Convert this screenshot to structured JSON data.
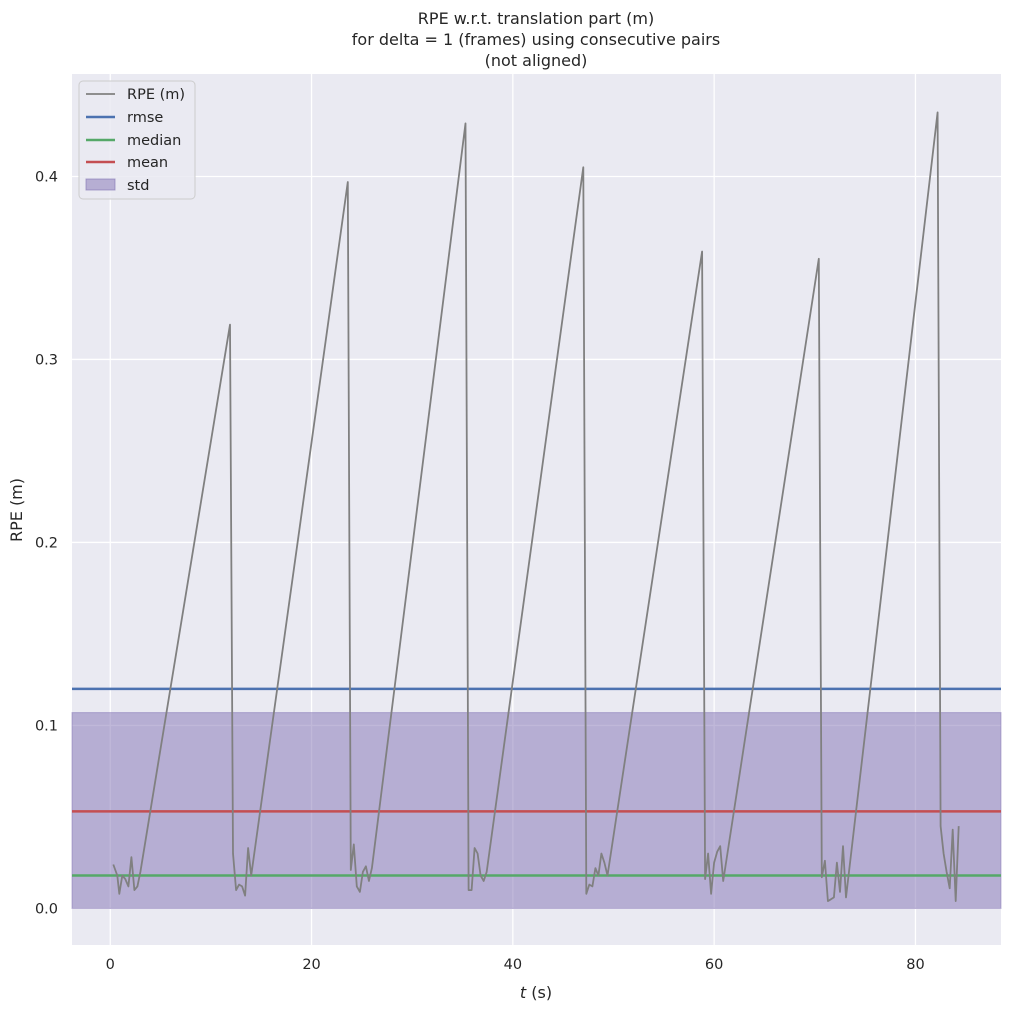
{
  "chart_data": {
    "type": "line",
    "title_lines": [
      "RPE w.r.t. translation part (m)",
      "for delta = 1 (frames) using consecutive pairs",
      "(not aligned)"
    ],
    "xlabel_var": "t",
    "xlabel_unit": " (s)",
    "ylabel": "RPE (m)",
    "xlim": [
      -3.8,
      88.5
    ],
    "ylim": [
      -0.02,
      0.456
    ],
    "x_ticks": [
      0,
      20,
      40,
      60,
      80
    ],
    "y_ticks": [
      0.0,
      0.1,
      0.2,
      0.3,
      0.4
    ],
    "x_tick_labels": [
      "0",
      "20",
      "40",
      "60",
      "80"
    ],
    "y_tick_labels": [
      "0.0",
      "0.1",
      "0.2",
      "0.3",
      "0.4"
    ],
    "grid": true,
    "legend_position": "top-left",
    "legend": [
      "RPE (m)",
      "rmse",
      "median",
      "mean",
      "std"
    ],
    "colors": {
      "background": "#eaeaf2",
      "grid": "#ffffff",
      "series": "#808080",
      "rmse": "#4c72b0",
      "median": "#55a868",
      "mean": "#c44e52",
      "std": "#8172b3"
    },
    "stats": {
      "rmse": 0.12,
      "median": 0.018,
      "mean": 0.053,
      "std_band": [
        0.0,
        0.107
      ]
    },
    "series": [
      {
        "name": "RPE (m)",
        "x": [
          0.3,
          0.7,
          0.9,
          1.2,
          1.5,
          1.8,
          2.1,
          2.4,
          2.7,
          3.0,
          11.9,
          12.2,
          12.5,
          12.8,
          13.1,
          13.4,
          13.7,
          14.0,
          23.6,
          23.9,
          24.2,
          24.5,
          24.8,
          25.1,
          25.4,
          25.7,
          26.0,
          35.3,
          35.6,
          35.9,
          36.2,
          36.5,
          36.8,
          37.1,
          37.4,
          47.0,
          47.3,
          47.6,
          47.9,
          48.2,
          48.5,
          48.8,
          49.1,
          49.4,
          58.8,
          59.1,
          59.4,
          59.7,
          60.0,
          60.3,
          60.6,
          60.9,
          70.4,
          70.7,
          71.0,
          71.3,
          71.6,
          71.9,
          72.2,
          72.5,
          72.8,
          73.1,
          82.2,
          82.5,
          82.8,
          83.1,
          83.4,
          83.7,
          84.0,
          84.3
        ],
        "values": [
          0.024,
          0.018,
          0.008,
          0.018,
          0.016,
          0.012,
          0.028,
          0.01,
          0.012,
          0.02,
          0.319,
          0.03,
          0.01,
          0.013,
          0.012,
          0.007,
          0.033,
          0.018,
          0.397,
          0.021,
          0.035,
          0.012,
          0.009,
          0.02,
          0.023,
          0.015,
          0.022,
          0.429,
          0.01,
          0.01,
          0.033,
          0.03,
          0.018,
          0.015,
          0.02,
          0.405,
          0.008,
          0.013,
          0.012,
          0.022,
          0.018,
          0.03,
          0.025,
          0.018,
          0.359,
          0.016,
          0.03,
          0.008,
          0.025,
          0.031,
          0.034,
          0.015,
          0.355,
          0.017,
          0.026,
          0.004,
          0.005,
          0.006,
          0.025,
          0.009,
          0.034,
          0.006,
          0.435,
          0.045,
          0.03,
          0.02,
          0.011,
          0.043,
          0.004,
          0.045
        ]
      }
    ]
  }
}
